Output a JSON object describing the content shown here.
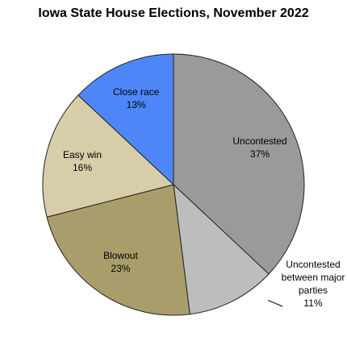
{
  "chart_data": {
    "type": "pie",
    "title": "Iowa State House Elections, November 2022",
    "categories": [
      "Uncontested",
      "Uncontested between major parties",
      "Blowout",
      "Easy win",
      "Close race"
    ],
    "values": [
      37,
      11,
      23,
      16,
      13
    ],
    "value_labels": [
      "37%",
      "11%",
      "23%",
      "16%",
      "13%"
    ],
    "colors": [
      "#9a9a9a",
      "#bdbdbd",
      "#a99d6b",
      "#d7cea9",
      "#4e86f8"
    ]
  }
}
